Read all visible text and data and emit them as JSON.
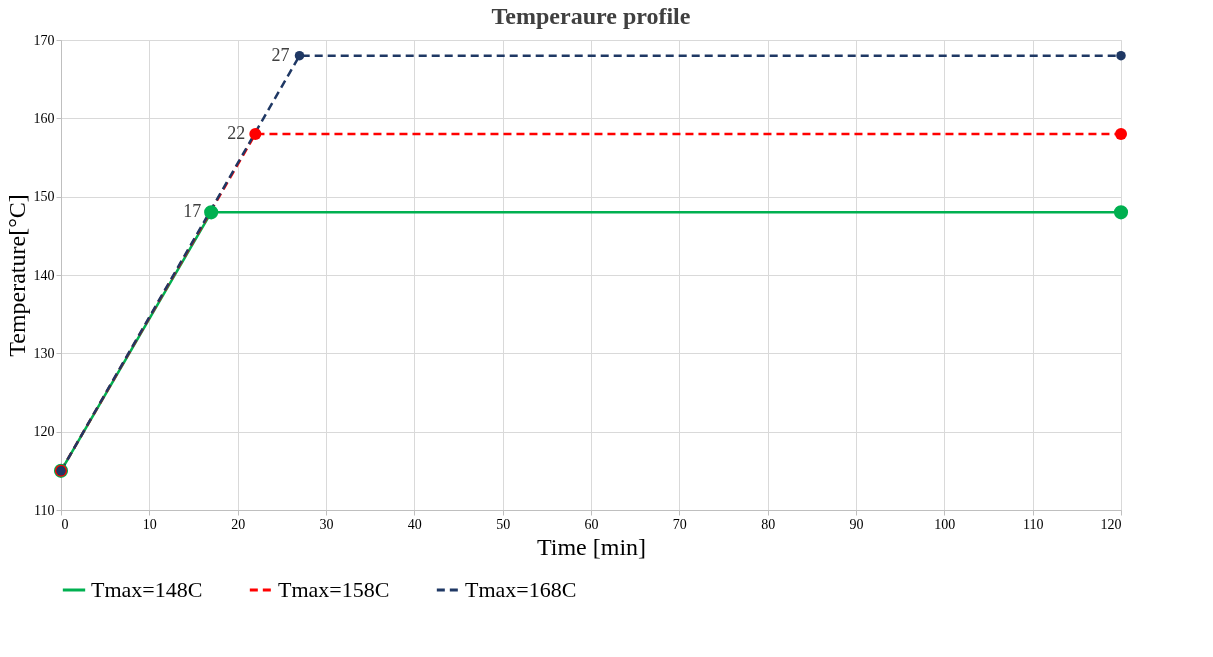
{
  "chart_data": {
    "type": "line",
    "title": "Temperaure profile",
    "xlabel": "Time  [min]",
    "ylabel": "Temperature[°C]",
    "xlim": [
      0,
      120
    ],
    "xticks": [
      0,
      10,
      20,
      30,
      40,
      50,
      60,
      70,
      80,
      90,
      100,
      110,
      120
    ],
    "ylim": [
      110,
      170
    ],
    "yticks": [
      110,
      120,
      130,
      140,
      150,
      160,
      170
    ],
    "grid": true,
    "legend": "bottom",
    "marker": "circle",
    "series": [
      {
        "name": "Tmax=148C",
        "color": "#00b050",
        "line_style": "solid",
        "x": [
          0,
          17,
          120
        ],
        "values": [
          115,
          148,
          148
        ]
      },
      {
        "name": "Tmax=158C",
        "color": "#ff0000",
        "line_style": "dashed",
        "x": [
          0,
          22,
          120
        ],
        "values": [
          115,
          158,
          158
        ]
      },
      {
        "name": "Tmax=168C",
        "color": "#1f3864",
        "line_style": "dashed",
        "x": [
          0,
          27,
          120
        ],
        "values": [
          115,
          168,
          168
        ]
      }
    ],
    "annotations": [
      {
        "text": "17",
        "x": 17,
        "y": 148
      },
      {
        "text": "22",
        "x": 22,
        "y": 158
      },
      {
        "text": "27",
        "x": 27,
        "y": 168
      }
    ]
  }
}
